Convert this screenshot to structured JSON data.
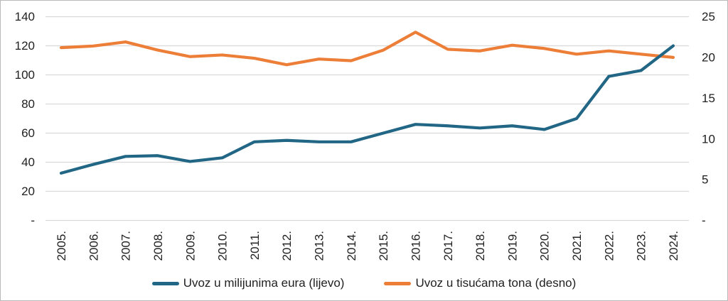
{
  "chart_data": {
    "type": "line",
    "title": "",
    "categories": [
      "2005.",
      "2006.",
      "2007.",
      "2008.",
      "2009.",
      "2010.",
      "2011.",
      "2012.",
      "2013.",
      "2014.",
      "2015.",
      "2016.",
      "2017.",
      "2018.",
      "2019.",
      "2020.",
      "2021.",
      "2022.",
      "2023.",
      "2024."
    ],
    "series": [
      {
        "name": "Uvoz u milijunima eura (lijevo)",
        "axis": "left",
        "color": "#226685",
        "values": [
          32.5,
          38.5,
          44,
          44.5,
          40.5,
          43,
          54,
          55,
          54,
          54,
          60,
          66,
          65,
          63.5,
          65,
          62.5,
          70,
          99,
          103,
          120
        ]
      },
      {
        "name": "Uvoz u tisućama tona (desno)",
        "axis": "right",
        "color": "#EC7E38",
        "values": [
          21.2,
          21.4,
          21.9,
          20.9,
          20.1,
          20.3,
          19.9,
          19.1,
          19.8,
          19.6,
          20.9,
          23.1,
          21.0,
          20.8,
          21.5,
          21.1,
          20.4,
          20.8,
          20.4,
          20.0
        ]
      }
    ],
    "left_axis": {
      "min": 0,
      "max": 140,
      "step": 20,
      "tick_labels": [
        "-",
        "20",
        "40",
        "60",
        "80",
        "100",
        "120",
        "140"
      ]
    },
    "right_axis": {
      "min": 0,
      "max": 25,
      "step": 5,
      "tick_labels": [
        "-",
        "5",
        "10",
        "15",
        "20",
        "25"
      ]
    },
    "grid": "horizontal-only",
    "gridline_color": "#d9d9d9",
    "legend_position": "bottom"
  }
}
